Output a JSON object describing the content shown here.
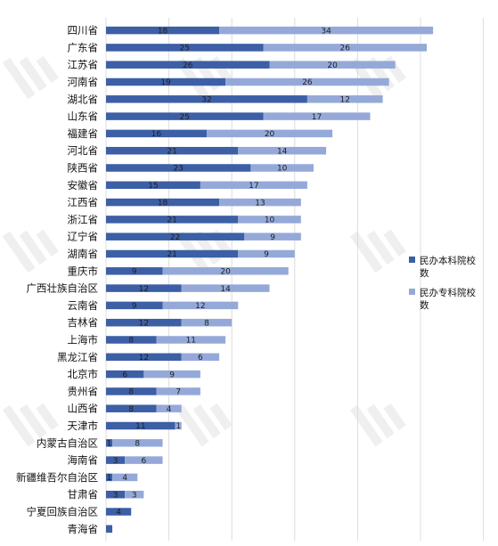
{
  "chart_data": {
    "type": "bar",
    "orientation": "horizontal",
    "stacked": true,
    "title": "",
    "xlabel": "",
    "ylabel": "",
    "grid": true,
    "legend_position": "right",
    "categories": [
      "四川省",
      "广东省",
      "江苏省",
      "河南省",
      "湖北省",
      "山东省",
      "福建省",
      "河北省",
      "陕西省",
      "安徽省",
      "江西省",
      "浙江省",
      "辽宁省",
      "湖南省",
      "重庆市",
      "广西壮族自治区",
      "云南省",
      "吉林省",
      "上海市",
      "黑龙江省",
      "北京市",
      "贵州省",
      "山西省",
      "天津市",
      "内蒙古自治区",
      "海南省",
      "新疆维吾尔自治区",
      "甘肃省",
      "宁夏回族自治区",
      "青海省"
    ],
    "series": [
      {
        "name": "民办本科院校数",
        "color": "#3c5fa6",
        "values": [
          18,
          25,
          26,
          19,
          32,
          25,
          16,
          21,
          23,
          15,
          18,
          21,
          22,
          21,
          9,
          12,
          9,
          12,
          8,
          12,
          6,
          8,
          8,
          11,
          1,
          3,
          1,
          3,
          4,
          1
        ],
        "labels": [
          "18",
          "25",
          "26",
          "19",
          "32",
          "25",
          "16",
          "21",
          "23",
          "15",
          "18",
          "21",
          "22",
          "21",
          "9",
          "12",
          "9",
          "12",
          "8",
          "12",
          "6",
          "8",
          "8",
          "11",
          "1",
          "3",
          "1",
          "3",
          "4",
          ""
        ]
      },
      {
        "name": "民办专科院校数",
        "color": "#95a9d9",
        "values": [
          34,
          26,
          20,
          26,
          12,
          17,
          20,
          14,
          10,
          17,
          13,
          10,
          9,
          9,
          20,
          14,
          12,
          8,
          11,
          6,
          9,
          7,
          4,
          1,
          8,
          6,
          4,
          3,
          0,
          0
        ],
        "labels": [
          "34",
          "26",
          "20",
          "26",
          "12",
          "17",
          "20",
          "14",
          "10",
          "17",
          "13",
          "10",
          "9",
          "9",
          "20",
          "14",
          "12",
          "8",
          "11",
          "6",
          "9",
          "7",
          "4",
          "1",
          "8",
          "6",
          "4",
          "3",
          "",
          ""
        ]
      }
    ],
    "xlim": [
      0,
      60
    ]
  }
}
